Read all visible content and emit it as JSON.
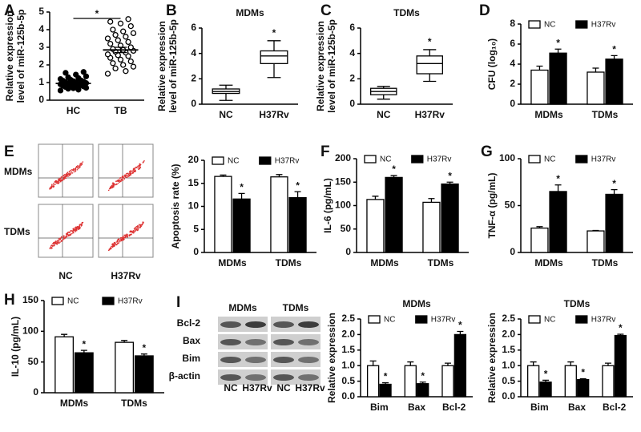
{
  "chart_data": [
    {
      "type": "strip",
      "panel": "A",
      "ylabel": [
        "Relative expression",
        "level of miR-125b-5p"
      ],
      "categories": [
        "HC",
        "TB"
      ],
      "groups": [
        {
          "values": [
            0.55,
            0.6,
            0.65,
            0.7,
            0.72,
            0.75,
            0.78,
            0.8,
            0.82,
            0.85,
            0.87,
            0.9,
            0.92,
            0.95,
            0.97,
            1.0,
            1.02,
            1.05,
            1.08,
            1.1,
            1.12,
            1.15,
            1.2,
            1.25,
            1.3,
            1.35,
            1.45,
            1.55,
            1.6,
            0.68
          ],
          "mean": 0.95,
          "error": 0.05,
          "color": "#000000"
        },
        {
          "values": [
            1.5,
            1.65,
            1.8,
            1.9,
            2.0,
            2.1,
            2.2,
            2.3,
            2.4,
            2.5,
            2.55,
            2.6,
            2.7,
            2.75,
            2.8,
            2.85,
            2.9,
            3.0,
            3.1,
            3.2,
            3.3,
            3.4,
            3.5,
            3.6,
            3.7,
            3.8,
            3.9,
            4.0,
            4.2,
            4.35,
            4.45,
            4.6
          ],
          "mean": 2.85,
          "error": 0.15,
          "color": "#ffffff"
        }
      ],
      "annotation": "*",
      "ylim": [
        0,
        5
      ],
      "yticks": [
        0,
        1,
        2,
        3,
        4,
        5
      ]
    },
    {
      "type": "box",
      "panel": "B",
      "title": "MDMs",
      "ylabel": [
        "Relative expression",
        "level of miR-125b-5p"
      ],
      "categories": [
        "NC",
        "H37Rv"
      ],
      "boxes": [
        {
          "min": 0.3,
          "q1": 0.85,
          "median": 1.0,
          "q3": 1.2,
          "max": 1.5
        },
        {
          "min": 2.1,
          "q1": 3.2,
          "median": 3.8,
          "q3": 4.2,
          "max": 5.0
        }
      ],
      "annotations": [
        null,
        "*"
      ],
      "ylim": [
        0,
        6
      ],
      "yticks": [
        0,
        2,
        4,
        6
      ]
    },
    {
      "type": "box",
      "panel": "C",
      "title": "TDMs",
      "ylabel": [
        "Relative expression",
        "level of miR-125b-5p"
      ],
      "categories": [
        "NC",
        "H37Rv"
      ],
      "boxes": [
        {
          "min": 0.4,
          "q1": 0.75,
          "median": 1.0,
          "q3": 1.25,
          "max": 1.4
        },
        {
          "min": 1.8,
          "q1": 2.4,
          "median": 3.2,
          "q3": 3.8,
          "max": 4.3
        }
      ],
      "annotations": [
        null,
        "*"
      ],
      "ylim": [
        0,
        6
      ],
      "yticks": [
        0,
        2,
        4,
        6
      ]
    },
    {
      "type": "bar",
      "panel": "D",
      "ylabel": [
        "CFU (log₁₀)"
      ],
      "categories": [
        "MDMs",
        "TDMs"
      ],
      "series": [
        {
          "name": "NC",
          "color": "#ffffff",
          "values": [
            3.4,
            3.2
          ],
          "errors": [
            0.4,
            0.4
          ],
          "annotations": [
            null,
            null
          ]
        },
        {
          "name": "H37Rv",
          "color": "#000000",
          "values": [
            5.1,
            4.5
          ],
          "errors": [
            0.4,
            0.35
          ],
          "annotations": [
            "*",
            "*"
          ]
        }
      ],
      "ylim": [
        0,
        8
      ],
      "yticks": [
        0,
        2,
        4,
        6,
        8
      ]
    },
    {
      "type": "bar",
      "ylabel": [
        "Apoptosis rate (%)"
      ],
      "categories": [
        "MDMs",
        "TDMs"
      ],
      "series": [
        {
          "name": "NC",
          "color": "#ffffff",
          "values": [
            16.5,
            16.4
          ],
          "errors": [
            0.3,
            0.5
          ],
          "annotations": [
            null,
            null
          ]
        },
        {
          "name": "H37Rv",
          "color": "#000000",
          "values": [
            11.6,
            11.9
          ],
          "errors": [
            1.2,
            1.3
          ],
          "annotations": [
            "*",
            "*"
          ]
        }
      ],
      "ylim": [
        0,
        20
      ],
      "yticks": [
        0,
        5,
        10,
        15,
        20
      ]
    },
    {
      "type": "bar",
      "panel": "F",
      "ylabel": [
        "IL-6 (pg/mL)"
      ],
      "categories": [
        "MDMs",
        "TDMs"
      ],
      "series": [
        {
          "name": "NC",
          "color": "#ffffff",
          "values": [
            113,
            107
          ],
          "errors": [
            7,
            8
          ],
          "annotations": [
            null,
            null
          ]
        },
        {
          "name": "H37Rv",
          "color": "#000000",
          "values": [
            160,
            146
          ],
          "errors": [
            4,
            4
          ],
          "annotations": [
            "*",
            "*"
          ]
        }
      ],
      "ylim": [
        0,
        200
      ],
      "yticks": [
        0,
        50,
        100,
        150,
        200
      ]
    },
    {
      "type": "bar",
      "panel": "G",
      "ylabel": [
        "TNF-α (pg/mL)"
      ],
      "categories": [
        "MDMs",
        "TDMs"
      ],
      "series": [
        {
          "name": "NC",
          "color": "#ffffff",
          "values": [
            26,
            23
          ],
          "errors": [
            1.5,
            0.5
          ],
          "annotations": [
            null,
            null
          ]
        },
        {
          "name": "H37Rv",
          "color": "#000000",
          "values": [
            65,
            62
          ],
          "errors": [
            7,
            5
          ],
          "annotations": [
            "*",
            "*"
          ]
        }
      ],
      "ylim": [
        0,
        100
      ],
      "yticks": [
        0,
        50,
        100
      ]
    },
    {
      "type": "bar",
      "panel": "H",
      "ylabel": [
        "IL-10 (pg/mL)"
      ],
      "categories": [
        "MDMs",
        "TDMs"
      ],
      "series": [
        {
          "name": "NC",
          "color": "#ffffff",
          "values": [
            91,
            82
          ],
          "errors": [
            4,
            3
          ],
          "annotations": [
            null,
            null
          ]
        },
        {
          "name": "H37Rv",
          "color": "#000000",
          "values": [
            65,
            60
          ],
          "errors": [
            4,
            3
          ],
          "annotations": [
            "*",
            "*"
          ]
        }
      ],
      "ylim": [
        0,
        150
      ],
      "yticks": [
        0,
        50,
        100,
        150
      ]
    },
    {
      "type": "bar",
      "title": "MDMs",
      "ylabel": [
        "Relative expression"
      ],
      "categories": [
        "Bim",
        "Bax",
        "Bcl-2"
      ],
      "series": [
        {
          "name": "NC",
          "color": "#ffffff",
          "values": [
            1.0,
            1.0,
            1.0
          ],
          "errors": [
            0.15,
            0.12,
            0.08
          ],
          "annotations": [
            null,
            null,
            null
          ]
        },
        {
          "name": "H37Rv",
          "color": "#000000",
          "values": [
            0.4,
            0.42,
            2.0
          ],
          "errors": [
            0.05,
            0.05,
            0.1
          ],
          "annotations": [
            "*",
            "*",
            "*"
          ]
        }
      ],
      "ylim": [
        0,
        2.5
      ],
      "yticks": [
        {
          "value": 0,
          "label": "0.0"
        },
        0.5,
        {
          "value": 1,
          "label": "1.0"
        },
        1.5,
        {
          "value": 2,
          "label": "2.0"
        },
        2.5
      ]
    },
    {
      "type": "bar",
      "title": "TDMs",
      "ylabel": [
        "Relative expression"
      ],
      "categories": [
        "Bim",
        "Bax",
        "Bcl-2"
      ],
      "series": [
        {
          "name": "NC",
          "color": "#ffffff",
          "values": [
            1.0,
            1.0,
            1.0
          ],
          "errors": [
            0.12,
            0.12,
            0.08
          ],
          "annotations": [
            null,
            null,
            null
          ]
        },
        {
          "name": "H37Rv",
          "color": "#000000",
          "values": [
            0.47,
            0.55,
            1.97
          ],
          "errors": [
            0.06,
            0.03,
            0.04
          ],
          "annotations": [
            "*",
            "*",
            "*"
          ]
        }
      ],
      "ylim": [
        0,
        2.5
      ],
      "yticks": [
        {
          "value": 0,
          "label": "0.0"
        },
        0.5,
        {
          "value": 1,
          "label": "1.0"
        },
        1.5,
        {
          "value": 2,
          "label": "2.0"
        },
        2.5
      ]
    }
  ],
  "flow_panel": {
    "panel": "E",
    "rows": [
      "MDMs",
      "TDMs"
    ],
    "columns": [
      "NC",
      "H37Rv"
    ]
  },
  "blot_panel": {
    "panel": "I",
    "groups": [
      "MDMs",
      "TDMs"
    ],
    "proteins": [
      "Bcl-2",
      "Bax",
      "Bim",
      "β-actin"
    ],
    "lanes": [
      "NC",
      "H37Rv",
      "NC",
      "H37Rv"
    ]
  }
}
